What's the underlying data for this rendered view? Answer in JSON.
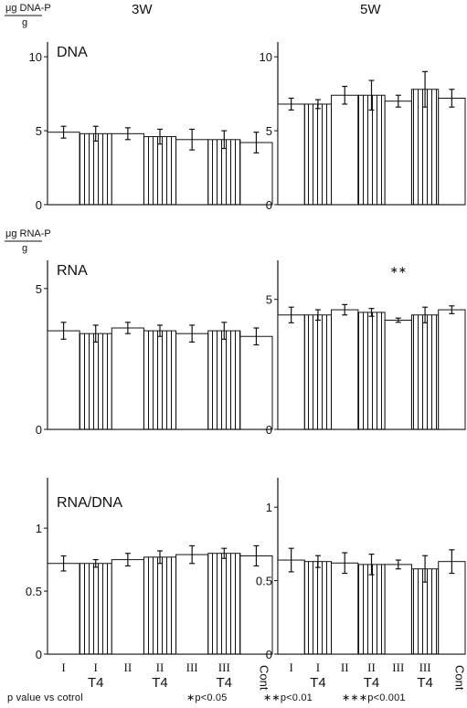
{
  "header": {
    "col_3w": "3W",
    "col_5w": "5W",
    "unit_dna_num": "μg DNA-P",
    "unit_dna_den": "g",
    "unit_rna_num": "μg RNA-P",
    "unit_rna_den": "g"
  },
  "x_groups": [
    "I",
    "I",
    "II",
    "II",
    "III",
    "III",
    "Cont"
  ],
  "x_group_sub": [
    "",
    "T4",
    "",
    "T4",
    "",
    "T4",
    ""
  ],
  "hatched": [
    false,
    true,
    false,
    true,
    false,
    true,
    false
  ],
  "footer": {
    "text": "p value vs cotrol",
    "sig1": "∗p<0.05",
    "sig2": "∗∗p<0.01",
    "sig3": "∗∗∗p<0.001"
  },
  "chart_data": [
    {
      "type": "bar",
      "panel": "DNA",
      "week": "3W",
      "title": "DNA",
      "ylim": [
        0,
        11
      ],
      "yticks": [
        0,
        5,
        10
      ],
      "categories": [
        "I",
        "I T4",
        "II",
        "II T4",
        "III",
        "III T4",
        "Cont"
      ],
      "values": [
        4.9,
        4.8,
        4.8,
        4.6,
        4.4,
        4.4,
        4.2
      ],
      "errors": [
        0.4,
        0.5,
        0.4,
        0.5,
        0.7,
        0.6,
        0.7
      ],
      "annotations": []
    },
    {
      "type": "bar",
      "panel": "DNA",
      "week": "5W",
      "title": "",
      "ylim": [
        0,
        11
      ],
      "yticks": [
        0,
        5,
        10
      ],
      "categories": [
        "I",
        "I T4",
        "II",
        "II T4",
        "III",
        "III T4",
        "Cont"
      ],
      "values": [
        6.8,
        6.8,
        7.4,
        7.4,
        7.0,
        7.8,
        7.2
      ],
      "errors": [
        0.4,
        0.3,
        0.6,
        1.0,
        0.4,
        1.2,
        0.6
      ],
      "annotations": []
    },
    {
      "type": "bar",
      "panel": "RNA",
      "week": "3W",
      "title": "RNA",
      "ylim": [
        0,
        6
      ],
      "yticks": [
        0,
        5
      ],
      "categories": [
        "I",
        "I T4",
        "II",
        "II T4",
        "III",
        "III T4",
        "Cont"
      ],
      "values": [
        3.5,
        3.4,
        3.6,
        3.5,
        3.4,
        3.5,
        3.3
      ],
      "errors": [
        0.3,
        0.3,
        0.2,
        0.2,
        0.3,
        0.3,
        0.3
      ],
      "annotations": []
    },
    {
      "type": "bar",
      "panel": "RNA",
      "week": "5W",
      "title": "",
      "ylim": [
        0,
        6.5
      ],
      "yticks": [
        0,
        5
      ],
      "categories": [
        "I",
        "I T4",
        "II",
        "II T4",
        "III",
        "III T4",
        "Cont"
      ],
      "values": [
        4.4,
        4.4,
        4.6,
        4.5,
        4.2,
        4.4,
        4.6
      ],
      "errors": [
        0.3,
        0.2,
        0.2,
        0.15,
        0.08,
        0.3,
        0.15
      ],
      "annotations": [
        {
          "category": "III",
          "text": "∗∗"
        }
      ]
    },
    {
      "type": "bar",
      "panel": "RNA/DNA",
      "week": "3W",
      "title": "RNA/DNA",
      "ylim": [
        0,
        1.4
      ],
      "yticks": [
        0,
        0.5,
        1
      ],
      "categories": [
        "I",
        "I T4",
        "II",
        "II T4",
        "III",
        "III T4",
        "Cont"
      ],
      "values": [
        0.72,
        0.72,
        0.75,
        0.77,
        0.79,
        0.8,
        0.78
      ],
      "errors": [
        0.06,
        0.03,
        0.05,
        0.05,
        0.07,
        0.04,
        0.08
      ],
      "annotations": []
    },
    {
      "type": "bar",
      "panel": "RNA/DNA",
      "week": "5W",
      "title": "",
      "ylim": [
        0,
        1.2
      ],
      "yticks": [
        0,
        0.5,
        1
      ],
      "categories": [
        "I",
        "I T4",
        "II",
        "II T4",
        "III",
        "III T4",
        "Cont"
      ],
      "values": [
        0.64,
        0.63,
        0.62,
        0.61,
        0.61,
        0.58,
        0.63
      ],
      "errors": [
        0.08,
        0.04,
        0.07,
        0.07,
        0.03,
        0.09,
        0.08
      ],
      "annotations": []
    }
  ]
}
